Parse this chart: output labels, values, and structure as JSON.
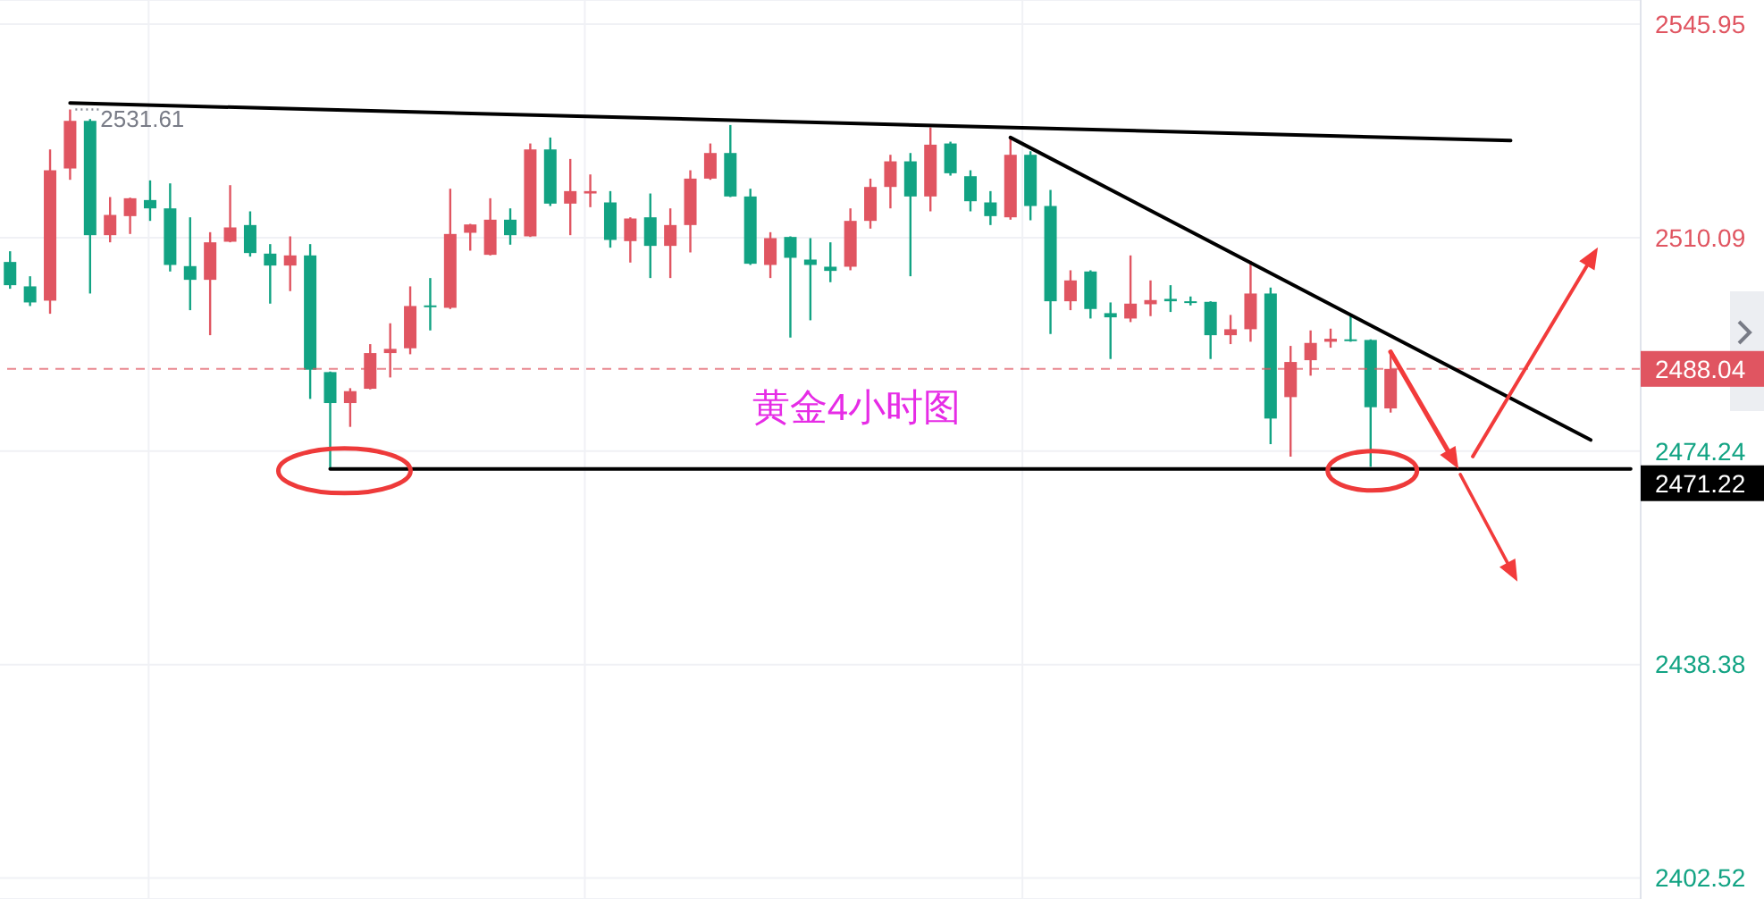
{
  "chart_data": {
    "type": "candlestick",
    "title": "黄金4小时图",
    "categories": [
      null,
      null,
      null,
      null,
      null,
      null,
      null,
      null,
      null,
      null,
      null,
      null,
      null,
      null,
      null,
      null,
      null,
      null,
      null,
      null,
      null,
      null,
      null,
      null,
      null,
      null,
      null,
      null,
      null,
      null,
      null,
      null,
      null,
      null,
      null,
      null,
      null,
      null,
      null,
      null,
      null,
      null,
      null,
      null,
      null,
      null,
      null,
      null,
      null,
      null,
      null,
      null,
      null,
      null,
      null,
      null,
      null,
      null,
      null,
      null,
      null,
      null,
      null,
      null,
      null,
      null,
      null,
      null,
      null,
      null,
      null,
      null,
      null,
      null,
      null,
      null,
      null,
      null,
      null,
      null,
      null,
      null
    ],
    "ohlc": [
      [
        2506.0,
        2507.8,
        2501.5,
        2502.1
      ],
      [
        2501.9,
        2503.6,
        2498.6,
        2499.2
      ],
      [
        2499.5,
        2524.9,
        2497.3,
        2521.4
      ],
      [
        2521.7,
        2531.61,
        2519.8,
        2529.7
      ],
      [
        2529.7,
        2530.0,
        2500.7,
        2510.5
      ],
      [
        2510.5,
        2516.9,
        2509.3,
        2513.9
      ],
      [
        2513.7,
        2516.8,
        2510.7,
        2516.7
      ],
      [
        2516.4,
        2519.7,
        2512.9,
        2515.0
      ],
      [
        2515.0,
        2519.2,
        2504.4,
        2505.5
      ],
      [
        2505.3,
        2513.5,
        2497.9,
        2503.0
      ],
      [
        2503.0,
        2511.0,
        2493.7,
        2509.3
      ],
      [
        2509.4,
        2518.9,
        2509.3,
        2511.8
      ],
      [
        2512.2,
        2514.5,
        2506.9,
        2507.5
      ],
      [
        2507.4,
        2509.0,
        2499.0,
        2505.4
      ],
      [
        2505.4,
        2510.3,
        2501.1,
        2507.1
      ],
      [
        2507.1,
        2509.0,
        2483.0,
        2487.9
      ],
      [
        2487.5,
        2487.6,
        2471.22,
        2482.3
      ],
      [
        2482.3,
        2484.8,
        2478.3,
        2484.3
      ],
      [
        2484.7,
        2492.2,
        2484.6,
        2490.7
      ],
      [
        2490.7,
        2495.7,
        2486.6,
        2491.4
      ],
      [
        2491.5,
        2501.9,
        2490.5,
        2498.6
      ],
      [
        2498.7,
        2503.3,
        2494.5,
        2498.5
      ],
      [
        2498.3,
        2518.3,
        2498.1,
        2510.7
      ],
      [
        2510.9,
        2512.4,
        2507.9,
        2512.3
      ],
      [
        2507.2,
        2516.7,
        2507.1,
        2513.1
      ],
      [
        2513.1,
        2515.0,
        2508.9,
        2510.5
      ],
      [
        2510.3,
        2525.9,
        2510.2,
        2524.9
      ],
      [
        2524.9,
        2526.9,
        2515.4,
        2515.8
      ],
      [
        2515.8,
        2523.3,
        2510.5,
        2517.9
      ],
      [
        2517.5,
        2520.7,
        2515.2,
        2517.9
      ],
      [
        2516.0,
        2517.9,
        2508.4,
        2509.7
      ],
      [
        2509.5,
        2513.5,
        2505.9,
        2513.3
      ],
      [
        2513.5,
        2517.5,
        2503.3,
        2508.7
      ],
      [
        2508.7,
        2515.0,
        2503.3,
        2512.2
      ],
      [
        2512.2,
        2521.4,
        2507.6,
        2520.0
      ],
      [
        2520.0,
        2525.9,
        2519.8,
        2524.3
      ],
      [
        2524.3,
        2529.0,
        2516.9,
        2517.0
      ],
      [
        2517.0,
        2518.3,
        2505.5,
        2505.7
      ],
      [
        2505.5,
        2511.0,
        2503.3,
        2510.0
      ],
      [
        2510.2,
        2510.3,
        2493.3,
        2506.7
      ],
      [
        2506.4,
        2510.0,
        2496.2,
        2505.5
      ],
      [
        2505.2,
        2509.3,
        2502.6,
        2504.5
      ],
      [
        2505.2,
        2515.0,
        2504.6,
        2512.9
      ],
      [
        2512.9,
        2520.0,
        2511.6,
        2518.6
      ],
      [
        2518.6,
        2524.0,
        2515.0,
        2522.9
      ],
      [
        2522.9,
        2524.3,
        2503.6,
        2517.0
      ],
      [
        2517.0,
        2528.6,
        2514.5,
        2525.7
      ],
      [
        2525.9,
        2526.2,
        2520.5,
        2520.9
      ],
      [
        2520.4,
        2521.4,
        2514.5,
        2516.2
      ],
      [
        2516.0,
        2517.9,
        2512.2,
        2513.7
      ],
      [
        2513.5,
        2527.1,
        2513.1,
        2524.0
      ],
      [
        2524.0,
        2524.6,
        2513.0,
        2515.4
      ],
      [
        2515.4,
        2518.1,
        2493.9,
        2499.4
      ],
      [
        2499.4,
        2504.6,
        2497.9,
        2502.9
      ],
      [
        2504.4,
        2504.6,
        2496.5,
        2498.1
      ],
      [
        2497.4,
        2499.2,
        2489.7,
        2496.7
      ],
      [
        2496.5,
        2507.1,
        2495.9,
        2499.0
      ],
      [
        2498.9,
        2502.9,
        2496.9,
        2499.6
      ],
      [
        2499.8,
        2502.1,
        2497.6,
        2499.4
      ],
      [
        2499.4,
        2500.2,
        2498.7,
        2499.2
      ],
      [
        2499.3,
        2499.4,
        2489.7,
        2493.7
      ],
      [
        2493.7,
        2497.1,
        2492.2,
        2494.7
      ],
      [
        2494.7,
        2506.2,
        2492.6,
        2500.7
      ],
      [
        2500.7,
        2501.7,
        2475.4,
        2479.7
      ],
      [
        2483.3,
        2491.9,
        2473.3,
        2489.2
      ],
      [
        2489.5,
        2494.5,
        2486.9,
        2492.4
      ],
      [
        2492.6,
        2494.8,
        2491.6,
        2493.1
      ],
      [
        2493.0,
        2496.9,
        2492.6,
        2492.7
      ],
      [
        2492.9,
        2493.0,
        2471.6,
        2481.6
      ],
      [
        2481.4,
        2490.9,
        2480.7,
        2488.04
      ],
      null,
      null,
      null,
      null,
      null,
      null,
      null,
      null,
      null,
      null,
      null,
      null
    ],
    "colors": [
      "#12a383",
      "#12a383",
      "#e05561",
      "#e05561",
      "#12a383",
      "#e05561",
      "#e05561",
      "#12a383",
      "#12a383",
      "#12a383",
      "#e05561",
      "#e05561",
      "#12a383",
      "#12a383",
      "#e05561",
      "#12a383",
      "#12a383",
      "#e05561",
      "#e05561",
      "#e05561",
      "#e05561",
      "#12a383",
      "#e05561",
      "#e05561",
      "#e05561",
      "#12a383",
      "#e05561",
      "#12a383",
      "#e05561",
      "#e05561",
      "#12a383",
      "#e05561",
      "#12a383",
      "#e05561",
      "#e05561",
      "#e05561",
      "#12a383",
      "#12a383",
      "#e05561",
      "#12a383",
      "#12a383",
      "#12a383",
      "#e05561",
      "#e05561",
      "#e05561",
      "#12a383",
      "#e05561",
      "#12a383",
      "#12a383",
      "#12a383",
      "#e05561",
      "#12a383",
      "#12a383",
      "#e05561",
      "#12a383",
      "#12a383",
      "#e05561",
      "#e05561",
      "#12a383",
      "#12a383",
      "#12a383",
      "#e05561",
      "#e05561",
      "#12a383",
      "#e05561",
      "#e05561",
      "#e05561",
      "#12a383",
      "#12a383",
      "#e05561",
      null,
      null,
      null,
      null,
      null,
      null,
      null,
      null,
      null,
      null,
      null,
      null
    ],
    "series": [
      {
        "type": "line",
        "color": "#000000",
        "values": [
          null,
          null,
          null,
          2532.7,
          null,
          null,
          null,
          null,
          null,
          null,
          null,
          null,
          null,
          null,
          null,
          null,
          null,
          null,
          null,
          null,
          null,
          null,
          null,
          null,
          null,
          null,
          null,
          null,
          null,
          null,
          null,
          null,
          null,
          null,
          null,
          null,
          null,
          null,
          null,
          null,
          null,
          null,
          null,
          null,
          null,
          null,
          null,
          null,
          null,
          null,
          null,
          null,
          null,
          null,
          null,
          null,
          null,
          null,
          null,
          null,
          null,
          null,
          null,
          null,
          null,
          null,
          null,
          null,
          null,
          null,
          null,
          null,
          null,
          null,
          null,
          2526.4,
          null,
          null,
          null,
          null,
          null,
          null
        ]
      },
      {
        "type": "line",
        "color": "#000000",
        "values": [
          null,
          null,
          null,
          null,
          null,
          null,
          null,
          null,
          null,
          null,
          null,
          null,
          null,
          null,
          null,
          null,
          null,
          null,
          null,
          null,
          null,
          null,
          null,
          null,
          null,
          null,
          null,
          null,
          null,
          null,
          null,
          null,
          null,
          null,
          null,
          null,
          null,
          null,
          null,
          null,
          null,
          null,
          null,
          null,
          null,
          null,
          null,
          null,
          null,
          null,
          2526.9,
          null,
          null,
          null,
          null,
          null,
          null,
          null,
          null,
          null,
          null,
          null,
          null,
          null,
          null,
          null,
          null,
          null,
          null,
          null,
          null,
          null,
          null,
          null,
          null,
          null,
          null,
          null,
          null,
          2476.1,
          null,
          null
        ]
      },
      {
        "type": "line",
        "color": "#000000",
        "values": [
          null,
          null,
          null,
          null,
          null,
          null,
          null,
          null,
          null,
          null,
          null,
          null,
          null,
          null,
          null,
          null,
          2471.22,
          null,
          null,
          null,
          null,
          null,
          null,
          null,
          null,
          null,
          null,
          null,
          null,
          null,
          null,
          null,
          null,
          null,
          null,
          null,
          null,
          null,
          null,
          null,
          null,
          null,
          null,
          null,
          null,
          null,
          null,
          null,
          null,
          null,
          null,
          null,
          null,
          null,
          null,
          null,
          null,
          null,
          null,
          null,
          null,
          null,
          null,
          null,
          null,
          null,
          null,
          null,
          null,
          null,
          null,
          null,
          null,
          null,
          null,
          null,
          null,
          null,
          null,
          null,
          null,
          2471.22
        ]
      }
    ],
    "ylim": [
      2399,
      2550
    ],
    "yticks": [
      2545.95,
      2510.09,
      2474.24,
      2438.38,
      2402.52
    ],
    "ref_lines": [
      {
        "axis": "y",
        "value": 2488.04,
        "label": "2488.04",
        "color": "#e05561",
        "line_style": "dashed"
      }
    ],
    "annotations": [
      {
        "text": "2531.61",
        "y": 2531.61
      },
      "2471.22"
    ],
    "grid": "y",
    "tick_labels": "y"
  }
}
